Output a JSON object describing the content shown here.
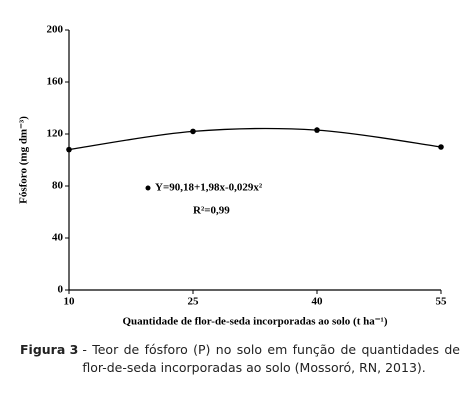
{
  "chart_data": {
    "type": "scatter",
    "x_label": "Quantidade de flor-de-seda incorporadas ao solo (t ha⁻¹)",
    "y_label": "Fósforo (mg dm⁻³)",
    "x": [
      10,
      25,
      40,
      55
    ],
    "values": [
      108,
      122,
      123,
      110
    ],
    "color": "#000000",
    "xlim": [
      10,
      55
    ],
    "xticks": [
      10,
      25,
      40,
      55
    ],
    "ylim": [
      0,
      200
    ],
    "yticks": [
      0,
      40,
      80,
      120,
      160,
      200
    ],
    "trendline": true,
    "annotations": [
      "Y=90,18+1,98x-0,029x²",
      "R²=0,99"
    ]
  },
  "caption": {
    "label": "Figura 3",
    "text": "- Teor de fósforo (P) no solo em função de quantidades de flor-de-seda incorporadas ao solo (Mossoró, RN, 2013)."
  }
}
